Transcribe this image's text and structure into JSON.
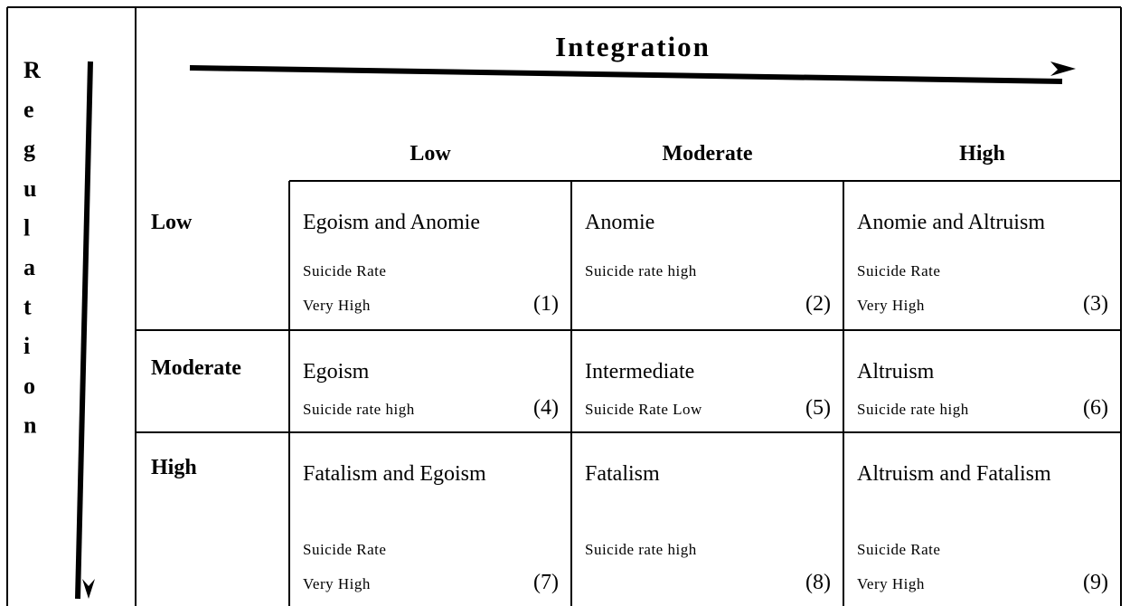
{
  "vertical_axis": {
    "letters": [
      "R",
      "e",
      "g",
      "u",
      "l",
      "a",
      "t",
      "i",
      "o",
      "n"
    ]
  },
  "horizontal_axis": {
    "title": "Integration"
  },
  "column_headers": [
    "Low",
    "Moderate",
    "High"
  ],
  "row_headers": [
    "Low",
    "Moderate",
    "High"
  ],
  "cells": [
    [
      {
        "title": "Egoism and Anomie",
        "note": [
          "Suicide Rate",
          "Very High"
        ],
        "number": "(1)"
      },
      {
        "title": "Anomie",
        "note": [
          "Suicide rate high"
        ],
        "number": "(2)"
      },
      {
        "title": "Anomie and Altruism",
        "note": [
          "Suicide Rate",
          "Very High"
        ],
        "number": "(3)"
      }
    ],
    [
      {
        "title": "Egoism",
        "note": [
          "Suicide rate high"
        ],
        "number": "(4)"
      },
      {
        "title": "Intermediate",
        "note": [
          "Suicide Rate Low"
        ],
        "number": "(5)"
      },
      {
        "title": "Altruism",
        "note": [
          "Suicide rate high"
        ],
        "number": "(6)"
      }
    ],
    [
      {
        "title": "Fatalism and Egoism",
        "note": [
          "Suicide Rate",
          "Very High"
        ],
        "number": "(7)"
      },
      {
        "title": "Fatalism",
        "note": [
          "Suicide rate high"
        ],
        "number": "(8)"
      },
      {
        "title": "Altruism and Fatalism",
        "note": [
          "Suicide Rate",
          "Very High"
        ],
        "number": "(9)"
      }
    ]
  ]
}
